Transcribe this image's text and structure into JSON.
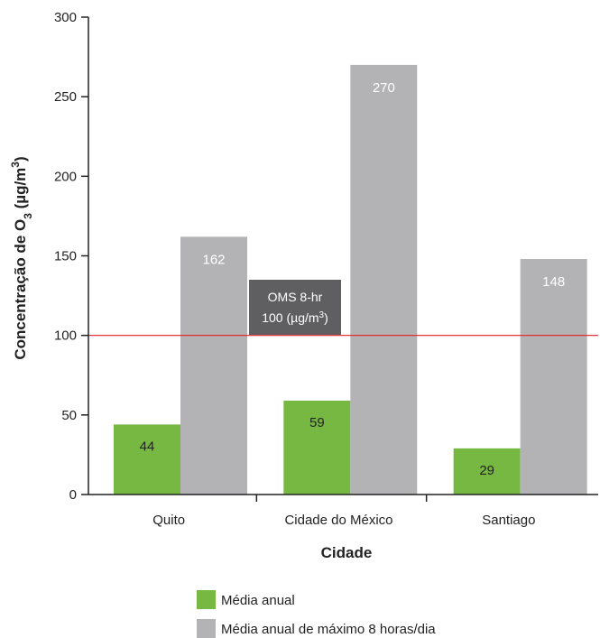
{
  "chart_data": {
    "type": "bar",
    "categories": [
      "Quito",
      "Cidade do México",
      "Santiago"
    ],
    "series": [
      {
        "name": "Média anual",
        "values": [
          44,
          59,
          29
        ],
        "color": "#77b843"
      },
      {
        "name": "Média anual de máximo 8 horas/dia",
        "values": [
          162,
          270,
          148
        ],
        "color": "#b3b3b5"
      }
    ],
    "xlabel": "Cidade",
    "ylabel": {
      "prefix": "Concentração de O",
      "sub": "3",
      "mid": " (µg/m",
      "sup": "3",
      "suffix": ")"
    },
    "ylim": [
      0,
      300
    ],
    "yticks": [
      0,
      50,
      100,
      150,
      200,
      250,
      300
    ],
    "reference_line": {
      "value": 100,
      "color": "#e41f26",
      "label_line1": "OMS 8-hr",
      "label_line2_prefix": "100 (µg/m",
      "label_line2_sup": "3",
      "label_line2_suffix": ")"
    },
    "legend_position": "bottom",
    "grid": false
  }
}
